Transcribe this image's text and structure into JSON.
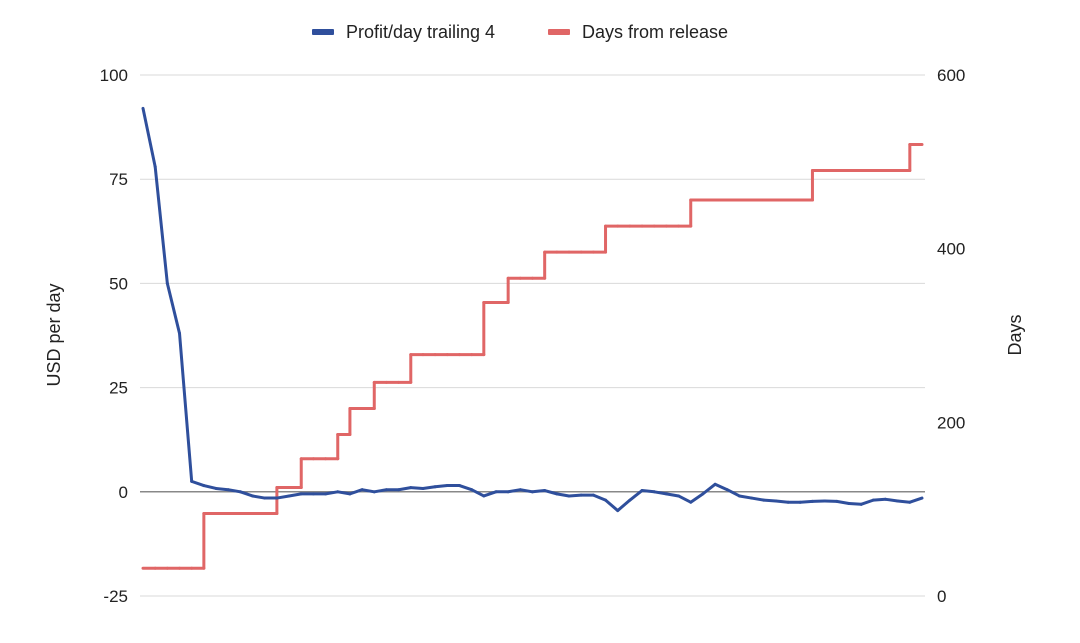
{
  "chart_data": {
    "type": "line",
    "title": "",
    "legend_position": "top-center",
    "grid": true,
    "left_axis": {
      "label": "USD per day",
      "range": [
        -25,
        100
      ],
      "ticks": [
        "100",
        "75",
        "50",
        "25",
        "0",
        "-25"
      ]
    },
    "right_axis": {
      "label": "Days",
      "range": [
        0,
        600
      ],
      "ticks": [
        "600",
        "400",
        "200",
        "0"
      ]
    },
    "x": [
      0,
      1,
      2,
      3,
      4,
      5,
      6,
      7,
      8,
      9,
      10,
      11,
      12,
      13,
      14,
      15,
      16,
      17,
      18,
      19,
      20,
      21,
      22,
      23,
      24,
      25,
      26,
      27,
      28,
      29,
      30,
      31,
      32,
      33,
      34,
      35,
      36,
      37,
      38,
      39,
      40,
      41,
      42,
      43,
      44,
      45,
      46,
      47,
      48,
      49,
      50,
      51,
      52,
      53,
      54,
      55,
      56,
      57,
      58,
      59,
      60,
      61,
      62,
      63,
      64
    ],
    "series": [
      {
        "name": "Profit/day trailing 4",
        "axis": "left",
        "color": "#2f4f9c",
        "values": [
          92,
          78,
          50,
          38,
          2.5,
          1.5,
          0.8,
          0.5,
          0,
          -1,
          -1.5,
          -1.5,
          -1,
          -0.5,
          -0.5,
          -0.5,
          0,
          -0.5,
          0.5,
          0,
          0.5,
          0.5,
          1,
          0.8,
          1.2,
          1.5,
          1.5,
          0.5,
          -1,
          0,
          0,
          0.5,
          0,
          0.3,
          -0.5,
          -1,
          -0.8,
          -0.8,
          -2,
          -4.5,
          -2,
          0.3,
          0,
          -0.5,
          -1,
          -2.5,
          -0.5,
          1.8,
          0.5,
          -1,
          -1.5,
          -2,
          -2.2,
          -2.5,
          -2.5,
          -2.3,
          -2.2,
          -2.3,
          -2.8,
          -3,
          -2,
          -1.8,
          -2.2,
          -2.5,
          -1.5
        ]
      },
      {
        "name": "Days from release",
        "axis": "right",
        "color": "#e06666",
        "values": [
          32,
          32,
          32,
          32,
          32,
          95,
          95,
          95,
          95,
          95,
          95,
          125,
          125,
          158,
          158,
          158,
          186,
          216,
          216,
          246,
          246,
          246,
          278,
          278,
          278,
          278,
          278,
          278,
          338,
          338,
          366,
          366,
          366,
          396,
          396,
          396,
          396,
          396,
          426,
          426,
          426,
          426,
          426,
          426,
          426,
          456,
          456,
          456,
          456,
          456,
          456,
          456,
          456,
          456,
          456,
          490,
          490,
          490,
          490,
          490,
          490,
          490,
          490,
          520,
          520
        ]
      }
    ]
  }
}
